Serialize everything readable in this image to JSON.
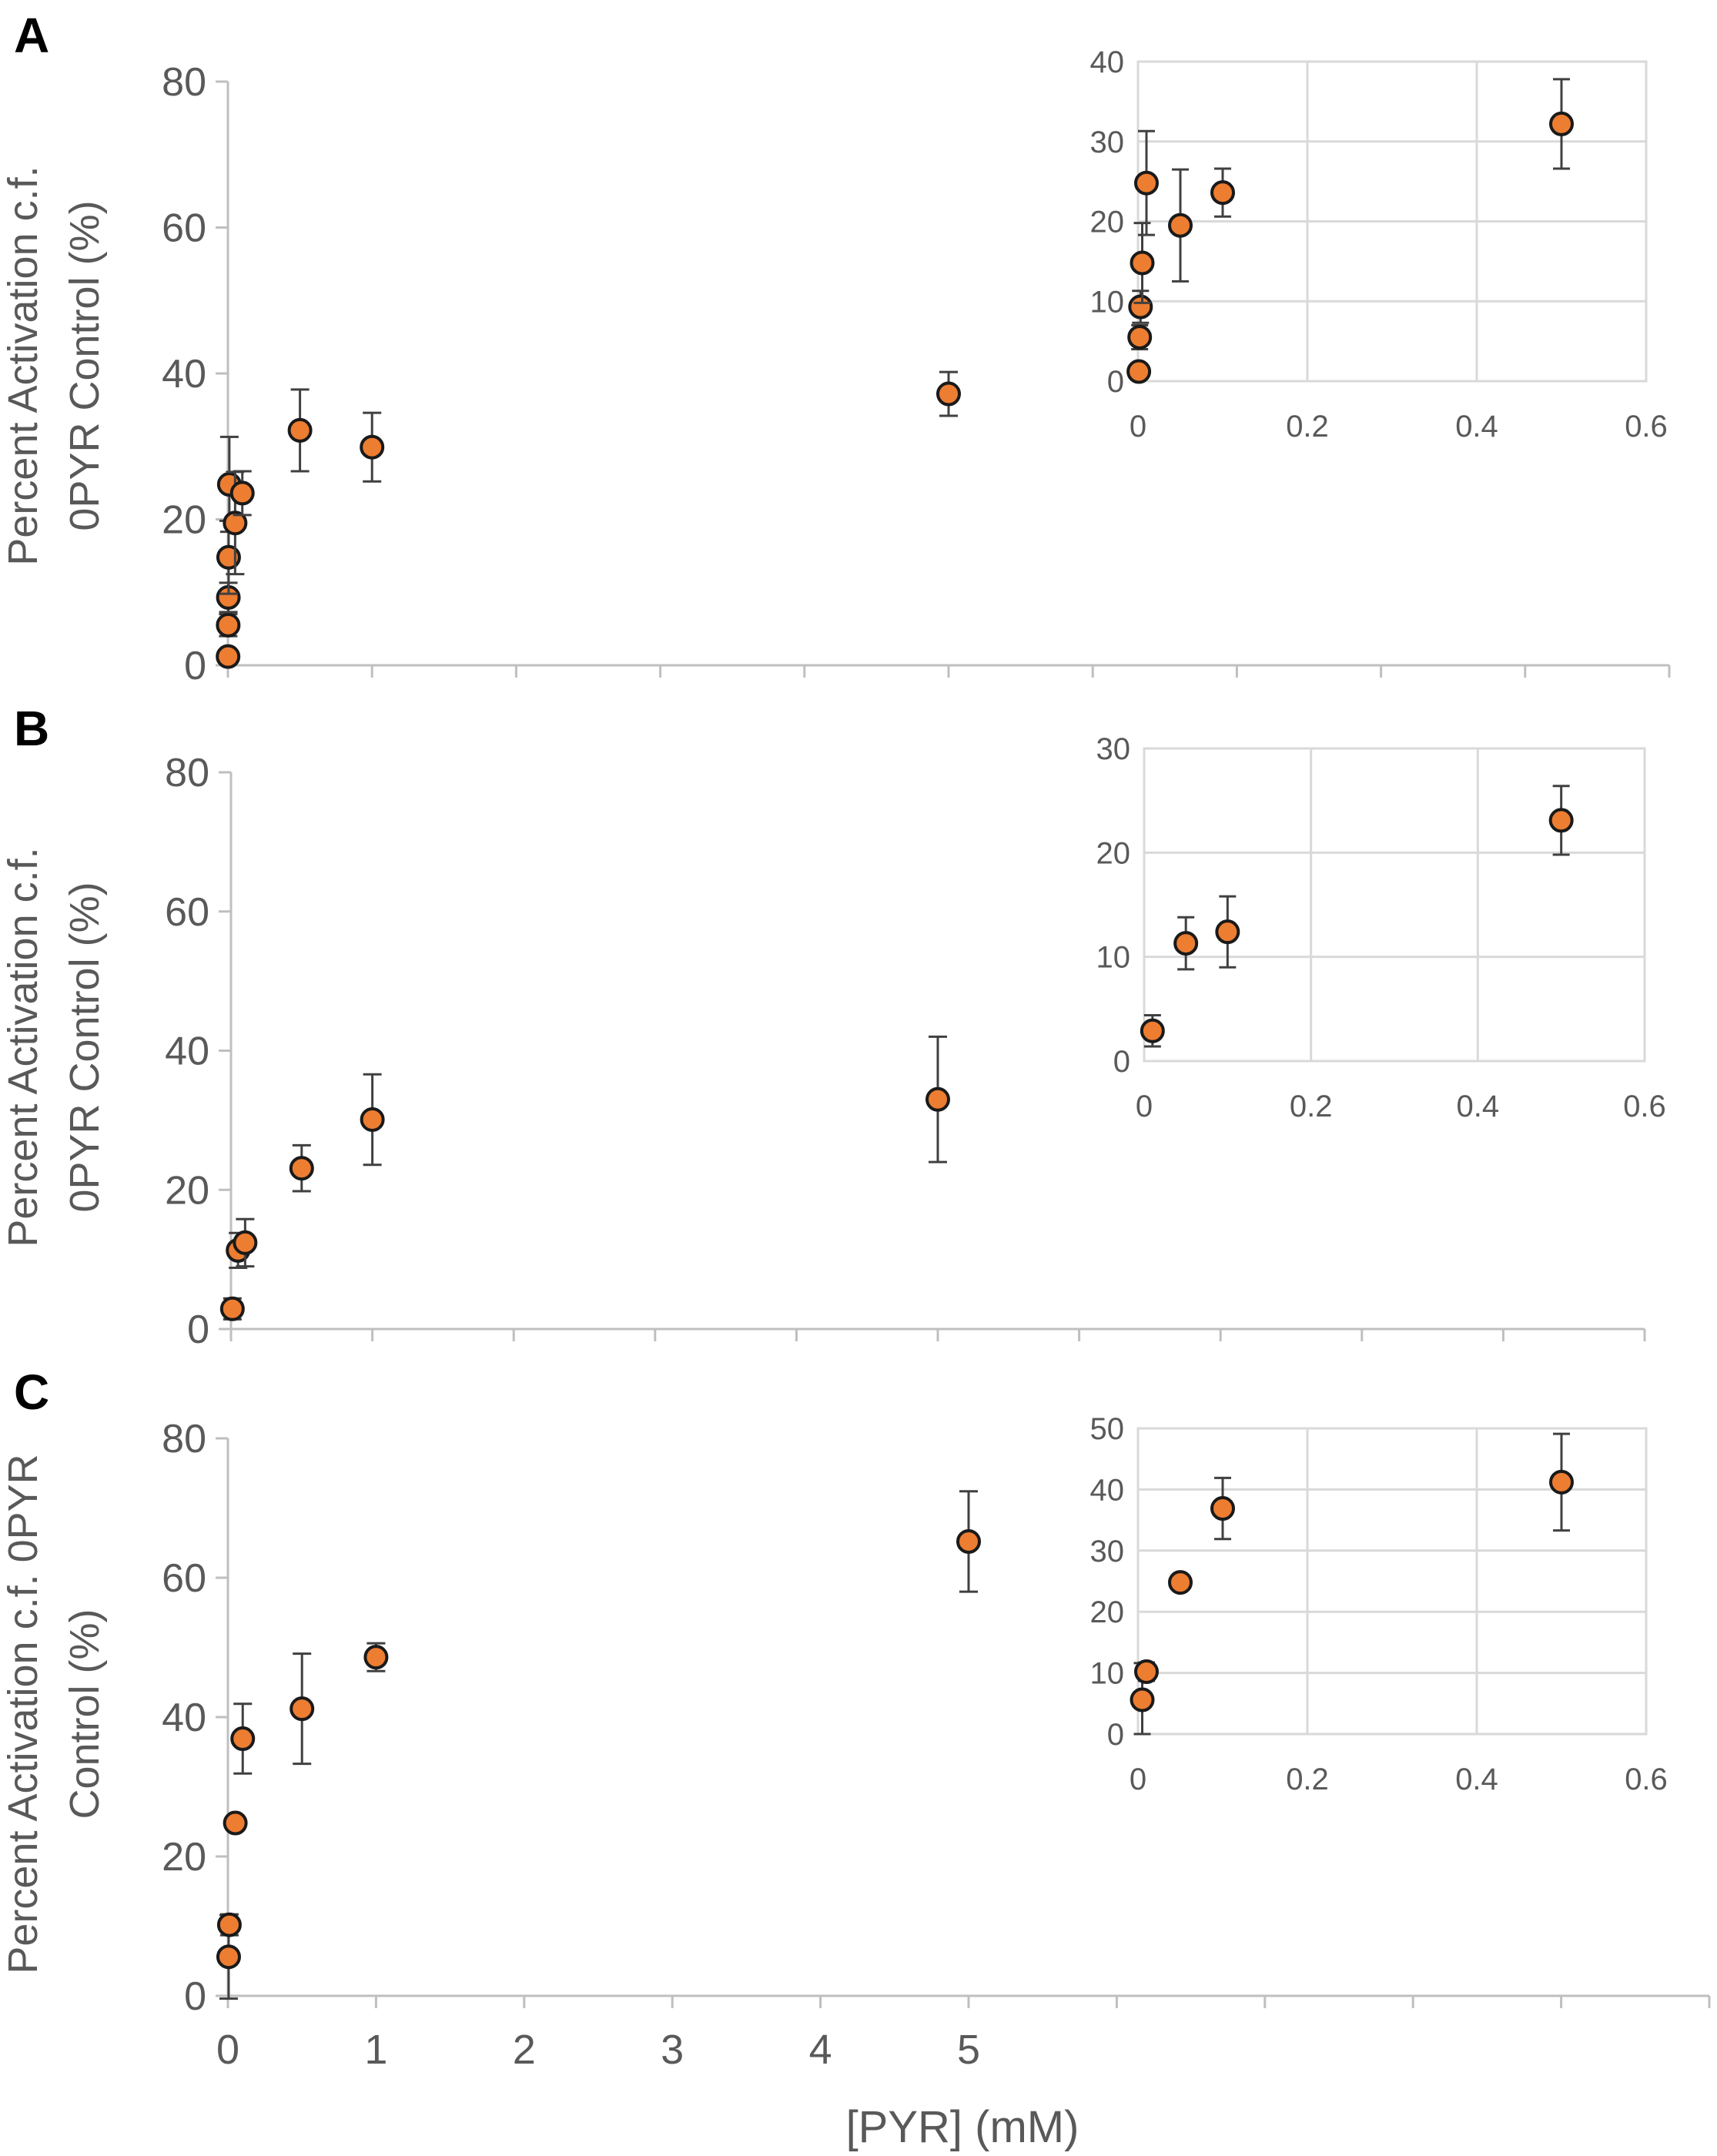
{
  "figure": {
    "x_axis_title": "[PYR] (mM)",
    "point_color": "#ED7D31",
    "point_stroke": "#1A1A1A",
    "axis_color": "#BFBFBF",
    "grid_color": "#D9D9D9",
    "text_color": "#595959"
  },
  "chart_data": [
    {
      "panel": "A",
      "type": "scatter",
      "ylabel_lines": [
        "Percent Activation c.f.",
        "0PYR Control (%)"
      ],
      "xlim": [
        0,
        10
      ],
      "ylim": [
        0,
        80
      ],
      "x_ticks": [
        0,
        1,
        2,
        3,
        4,
        5,
        6,
        7,
        8,
        9,
        10
      ],
      "x_tick_labels": [],
      "y_ticks": [
        0,
        20,
        40,
        60,
        80
      ],
      "y_tick_labels": [
        "0",
        "20",
        "40",
        "60",
        "80"
      ],
      "points": [
        {
          "x": 0.001,
          "y": 1.2,
          "err": 0
        },
        {
          "x": 0.002,
          "y": 5.5,
          "err": 1.5
        },
        {
          "x": 0.003,
          "y": 9.3,
          "err": 2.0
        },
        {
          "x": 0.005,
          "y": 14.8,
          "err": 5.0
        },
        {
          "x": 0.01,
          "y": 24.8,
          "err": 6.5
        },
        {
          "x": 0.05,
          "y": 19.5,
          "err": 7.0
        },
        {
          "x": 0.1,
          "y": 23.6,
          "err": 3.0
        },
        {
          "x": 0.5,
          "y": 32.2,
          "err": 5.6
        },
        {
          "x": 1.0,
          "y": 29.9,
          "err": 4.7
        },
        {
          "x": 5.0,
          "y": 37.2,
          "err": 3.0
        }
      ],
      "inset": {
        "xlim": [
          0,
          0.6
        ],
        "ylim": [
          0,
          40
        ],
        "x_ticks": [
          0,
          0.2,
          0.4,
          0.6
        ],
        "x_tick_labels": [
          "0",
          "0.2",
          "0.4",
          "0.6"
        ],
        "y_ticks": [
          0,
          10,
          20,
          30,
          40
        ],
        "y_tick_labels": [
          "0",
          "10",
          "20",
          "30",
          "40"
        ],
        "points": [
          {
            "x": 0.001,
            "y": 1.2,
            "err": 0
          },
          {
            "x": 0.002,
            "y": 5.5,
            "err": 1.5
          },
          {
            "x": 0.003,
            "y": 9.3,
            "err": 2.0
          },
          {
            "x": 0.005,
            "y": 14.8,
            "err": 5.0
          },
          {
            "x": 0.01,
            "y": 24.8,
            "err": 6.5
          },
          {
            "x": 0.05,
            "y": 19.5,
            "err": 7.0
          },
          {
            "x": 0.1,
            "y": 23.6,
            "err": 3.0
          },
          {
            "x": 0.5,
            "y": 32.2,
            "err": 5.6
          }
        ]
      }
    },
    {
      "panel": "B",
      "type": "scatter",
      "ylabel_lines": [
        "Percent Activation c.f.",
        "0PYR Control (%)"
      ],
      "xlim": [
        0,
        10
      ],
      "ylim": [
        0,
        80
      ],
      "x_ticks": [
        0,
        1,
        2,
        3,
        4,
        5,
        6,
        7,
        8,
        9,
        10
      ],
      "x_tick_labels": [],
      "y_ticks": [
        0,
        20,
        40,
        60,
        80
      ],
      "y_tick_labels": [
        "0",
        "20",
        "40",
        "60",
        "80"
      ],
      "points": [
        {
          "x": 0.01,
          "y": 2.9,
          "err": 1.5
        },
        {
          "x": 0.05,
          "y": 11.3,
          "err": 2.5
        },
        {
          "x": 0.1,
          "y": 12.4,
          "err": 3.4
        },
        {
          "x": 0.5,
          "y": 23.1,
          "err": 3.3
        },
        {
          "x": 1.0,
          "y": 30.1,
          "err": 6.5
        },
        {
          "x": 5.0,
          "y": 33.0,
          "err": 9.0
        }
      ],
      "inset": {
        "xlim": [
          0,
          0.6
        ],
        "ylim": [
          0,
          30
        ],
        "x_ticks": [
          0,
          0.2,
          0.4,
          0.6
        ],
        "x_tick_labels": [
          "0",
          "0.2",
          "0.4",
          "0.6"
        ],
        "y_ticks": [
          0,
          10,
          20,
          30
        ],
        "y_tick_labels": [
          "0",
          "10",
          "20",
          "30"
        ],
        "points": [
          {
            "x": 0.01,
            "y": 2.9,
            "err": 1.5
          },
          {
            "x": 0.05,
            "y": 11.3,
            "err": 2.5
          },
          {
            "x": 0.1,
            "y": 12.4,
            "err": 3.4
          },
          {
            "x": 0.5,
            "y": 23.1,
            "err": 3.3
          }
        ]
      }
    },
    {
      "panel": "C",
      "type": "scatter",
      "ylabel_lines": [
        "Percent Activation c.f. 0PYR",
        "Control (%)"
      ],
      "xlim": [
        0,
        10
      ],
      "ylim": [
        0,
        80
      ],
      "x_ticks": [
        0,
        1,
        2,
        3,
        4,
        5,
        6,
        7,
        8,
        9,
        10
      ],
      "x_tick_labels": [
        "0",
        "1",
        "2",
        "3",
        "4",
        "5",
        "",
        "",
        "",
        "",
        ""
      ],
      "y_ticks": [
        0,
        20,
        40,
        60,
        80
      ],
      "y_tick_labels": [
        "0",
        "20",
        "40",
        "60",
        "80"
      ],
      "points": [
        {
          "x": 0.005,
          "y": 5.6,
          "err": 6.0
        },
        {
          "x": 0.01,
          "y": 10.2,
          "err": 1.5
        },
        {
          "x": 0.05,
          "y": 24.8,
          "err": 0
        },
        {
          "x": 0.1,
          "y": 36.9,
          "err": 5.0
        },
        {
          "x": 0.5,
          "y": 41.2,
          "err": 7.9
        },
        {
          "x": 1.0,
          "y": 48.6,
          "err": 2.0
        },
        {
          "x": 5.0,
          "y": 65.2,
          "err": 7.2
        }
      ],
      "inset": {
        "xlim": [
          0,
          0.6
        ],
        "ylim": [
          0,
          50
        ],
        "x_ticks": [
          0,
          0.2,
          0.4,
          0.6
        ],
        "x_tick_labels": [
          "0",
          "0.2",
          "0.4",
          "0.6"
        ],
        "y_ticks": [
          0,
          10,
          20,
          30,
          40,
          50
        ],
        "y_tick_labels": [
          "0",
          "10",
          "20",
          "30",
          "40",
          "50"
        ],
        "points": [
          {
            "x": 0.005,
            "y": 5.6,
            "err": 6.0
          },
          {
            "x": 0.01,
            "y": 10.2,
            "err": 1.5
          },
          {
            "x": 0.05,
            "y": 24.8,
            "err": 0
          },
          {
            "x": 0.1,
            "y": 36.9,
            "err": 5.0
          },
          {
            "x": 0.5,
            "y": 41.2,
            "err": 7.9
          }
        ]
      }
    }
  ]
}
